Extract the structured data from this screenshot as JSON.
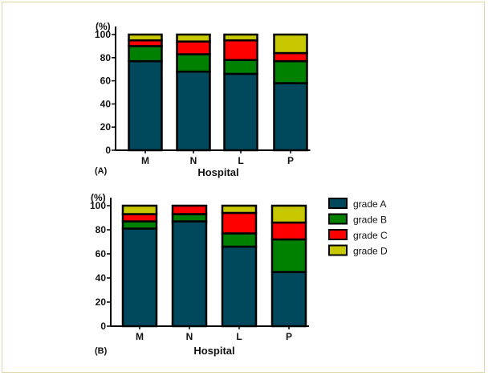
{
  "chart_data": [
    {
      "type": "bar",
      "stacked": true,
      "panel_label": "(A)",
      "xlabel": "Hospital",
      "ylabel": "(%)",
      "ylim": [
        0,
        100
      ],
      "yticks": [
        0,
        20,
        40,
        60,
        80,
        100
      ],
      "categories": [
        "M",
        "N",
        "L",
        "P"
      ],
      "series": [
        {
          "name": "grade A",
          "values": [
            77,
            68,
            66,
            58
          ]
        },
        {
          "name": "grade B",
          "values": [
            13,
            15,
            12,
            19
          ]
        },
        {
          "name": "grade C",
          "values": [
            5,
            11,
            17,
            7
          ]
        },
        {
          "name": "grade D",
          "values": [
            5,
            6,
            5,
            16
          ]
        }
      ]
    },
    {
      "type": "bar",
      "stacked": true,
      "panel_label": "(B)",
      "xlabel": "Hospital",
      "ylabel": "(%)",
      "ylim": [
        0,
        100
      ],
      "yticks": [
        0,
        20,
        40,
        60,
        80,
        100
      ],
      "categories": [
        "M",
        "N",
        "L",
        "P"
      ],
      "series": [
        {
          "name": "grade A",
          "values": [
            81,
            87,
            66,
            45
          ]
        },
        {
          "name": "grade B",
          "values": [
            6,
            6,
            11,
            27
          ]
        },
        {
          "name": "grade C",
          "values": [
            6,
            7,
            17,
            14
          ]
        },
        {
          "name": "grade D",
          "values": [
            7,
            0,
            6,
            14
          ]
        }
      ]
    }
  ],
  "legend": {
    "placement": "right",
    "items": [
      "grade A",
      "grade B",
      "grade C",
      "grade D"
    ]
  },
  "colors": {
    "grade A": "#00485c",
    "grade B": "#008000",
    "grade C": "#ff0000",
    "grade D": "#c8c800"
  }
}
